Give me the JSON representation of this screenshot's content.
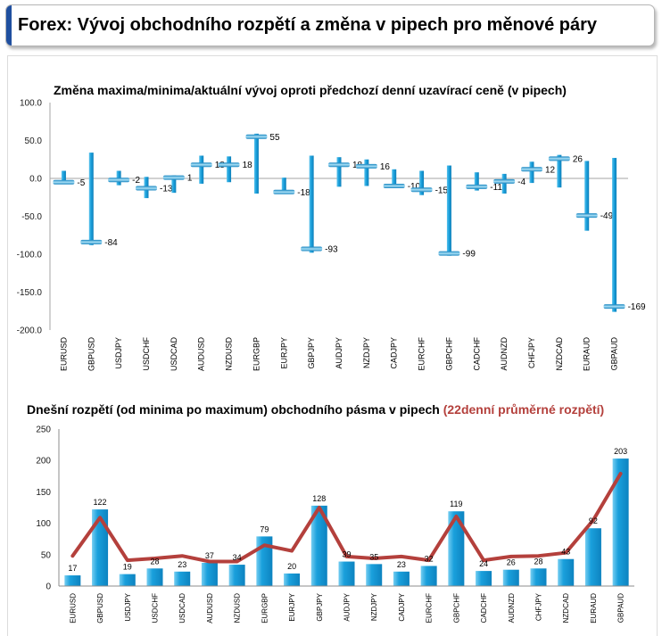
{
  "header": {
    "title": "Forex: Vývoj obchodního rozpětí a změna v pipech pro měnové páry"
  },
  "colors": {
    "header_accent": "#1f4f9f",
    "bar": "#1aa0dc",
    "avg_line": "#b4403c",
    "title_highlight": "#b4403c"
  },
  "chart_data": [
    {
      "type": "bar",
      "title": "Změna maxima/minima/aktuální vývoj oproti předchozí denní uzavírací ceně (v pipech)",
      "categories": [
        "EURUSD",
        "GBPUSD",
        "USDJPY",
        "USDCHF",
        "USDCAD",
        "AUDUSD",
        "NZDUSD",
        "EURGBP",
        "EURJPY",
        "GBPJPY",
        "AUDJPY",
        "NZDJPY",
        "CADJPY",
        "EURCHF",
        "GBPCHF",
        "CADCHF",
        "AUDNZD",
        "CHFJPY",
        "NZDCAD",
        "EURAUD",
        "GBPAUD"
      ],
      "max": [
        10,
        34,
        10,
        2,
        4,
        30,
        29,
        59,
        1,
        30,
        28,
        25,
        12,
        10,
        17,
        8,
        6,
        22,
        31,
        23,
        27
      ],
      "min": [
        -7,
        -88,
        -9,
        -26,
        -19,
        -7,
        -5,
        -20,
        -19,
        -98,
        -11,
        -10,
        -11,
        -22,
        -102,
        -16,
        -20,
        -6,
        -12,
        -69,
        -176
      ],
      "current": [
        -5,
        -84,
        -2,
        -13,
        1,
        18,
        18,
        55,
        -18,
        -93,
        18,
        16,
        -10,
        -15,
        -99,
        -11,
        -4,
        12,
        26,
        -49,
        -169
      ],
      "ylim": [
        -200,
        100
      ],
      "yticks": [
        "100.0",
        "50.0",
        "0.0",
        "-50.0",
        "-100.0",
        "-150.0",
        "-200.0"
      ],
      "grid": false
    },
    {
      "type": "bar",
      "title": "Dnešní rozpětí (od minima po maximum) obchodního pásma v pipech",
      "title_line_series": "(22denní průměrné rozpětí)",
      "categories": [
        "EURUSD",
        "GBPUSD",
        "USDJPY",
        "USDCHF",
        "USDCAD",
        "AUDUSD",
        "NZDUSD",
        "EURGBP",
        "EURJPY",
        "GBPJPY",
        "AUDJPY",
        "NZDJPY",
        "CADJPY",
        "EURCHF",
        "GBPCHF",
        "CADCHF",
        "AUDNZD",
        "CHFJPY",
        "NZDCAD",
        "EURAUD",
        "GBPAUD"
      ],
      "series": [
        {
          "type": "bar",
          "values": [
            17,
            122,
            19,
            28,
            23,
            37,
            34,
            79,
            20,
            128,
            39,
            35,
            23,
            32,
            119,
            24,
            26,
            28,
            43,
            92,
            203
          ]
        },
        {
          "type": "line",
          "values": [
            48,
            109,
            41,
            44,
            48,
            39,
            39,
            65,
            56,
            125,
            47,
            44,
            47,
            41,
            111,
            41,
            47,
            48,
            53,
            105,
            179
          ]
        }
      ],
      "ylim": [
        0,
        250
      ],
      "yticks": [
        "0",
        "50",
        "100",
        "150",
        "200",
        "250"
      ],
      "grid": false
    }
  ]
}
